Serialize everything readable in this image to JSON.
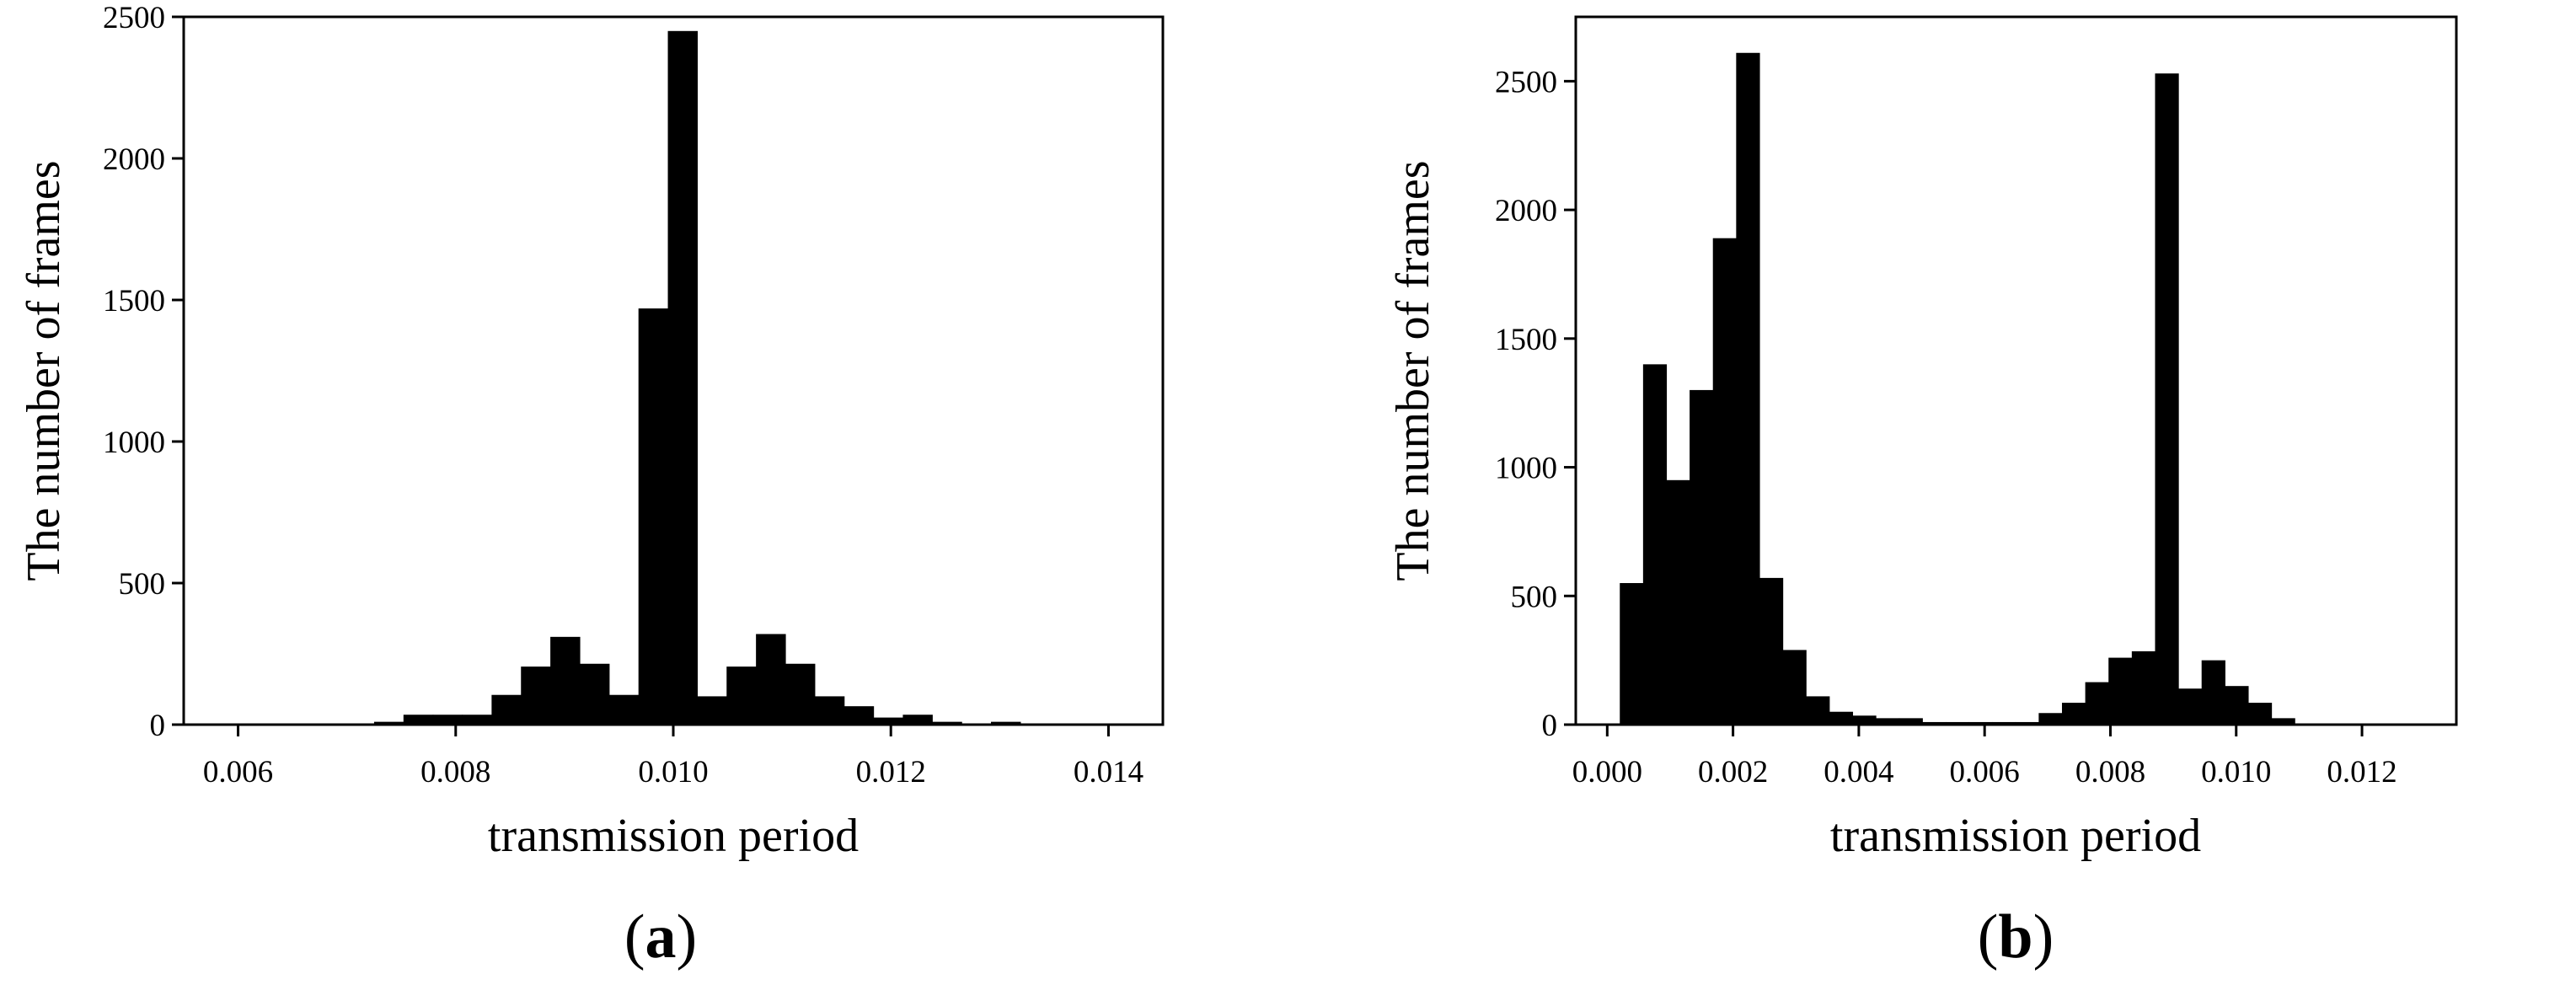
{
  "chart_data": [
    {
      "type": "bar",
      "panel_label": "a",
      "xlabel": "transmission period",
      "ylabel": "The number of frames",
      "xlim": [
        0.0055,
        0.0145
      ],
      "ylim": [
        0,
        2500
      ],
      "xticks": [
        0.006,
        0.008,
        0.01,
        0.012,
        0.014
      ],
      "xtick_labels": [
        "0.006",
        "0.008",
        "0.010",
        "0.012",
        "0.014"
      ],
      "yticks": [
        0,
        500,
        1000,
        1500,
        2000,
        2500
      ],
      "ytick_labels": [
        "0",
        "500",
        "1000",
        "1500",
        "2000",
        "2500"
      ],
      "bin_width": 0.00027,
      "bin_starts": [
        0.00725,
        0.00752,
        0.00779,
        0.00806,
        0.00833,
        0.0086,
        0.00887,
        0.00914,
        0.00941,
        0.00968,
        0.00995,
        0.01022,
        0.01049,
        0.01076,
        0.01103,
        0.0113,
        0.01157,
        0.01184,
        0.01211,
        0.01238,
        0.01265,
        0.01292
      ],
      "values": [
        10,
        35,
        35,
        35,
        105,
        205,
        310,
        215,
        105,
        1470,
        2450,
        100,
        205,
        320,
        215,
        100,
        65,
        25,
        35,
        10,
        0,
        10
      ],
      "grid": false
    },
    {
      "type": "bar",
      "panel_label": "b",
      "xlabel": "transmission period",
      "ylabel": "The number of frames",
      "xlim": [
        -0.0005,
        0.0135
      ],
      "ylim": [
        0,
        2750
      ],
      "xticks": [
        0.0,
        0.002,
        0.004,
        0.006,
        0.008,
        0.01,
        0.012
      ],
      "xtick_labels": [
        "0.000",
        "0.002",
        "0.004",
        "0.006",
        "0.008",
        "0.010",
        "0.012"
      ],
      "yticks": [
        0,
        500,
        1000,
        1500,
        2000,
        2500
      ],
      "ytick_labels": [
        "0",
        "500",
        "1000",
        "1500",
        "2000",
        "2500"
      ],
      "bin_width": 0.00037,
      "bin_starts": [
        0.0002,
        0.00057,
        0.00094,
        0.00131,
        0.00168,
        0.00205,
        0.00242,
        0.00279,
        0.00316,
        0.00353,
        0.0039,
        0.00427,
        0.00464,
        0.00501,
        0.00538,
        0.00575,
        0.00612,
        0.00649,
        0.00686,
        0.00723,
        0.0076,
        0.00797,
        0.00834,
        0.00871,
        0.00908,
        0.00945,
        0.00982,
        0.01019,
        0.01056,
        0.01093,
        0.0113,
        0.01167,
        0.01204
      ],
      "values": [
        550,
        1400,
        950,
        1300,
        1890,
        2610,
        570,
        290,
        110,
        50,
        35,
        25,
        25,
        10,
        10,
        10,
        10,
        10,
        45,
        85,
        165,
        260,
        285,
        2530,
        140,
        250,
        150,
        85,
        25,
        0,
        0,
        0,
        0
      ],
      "grid": false
    }
  ]
}
